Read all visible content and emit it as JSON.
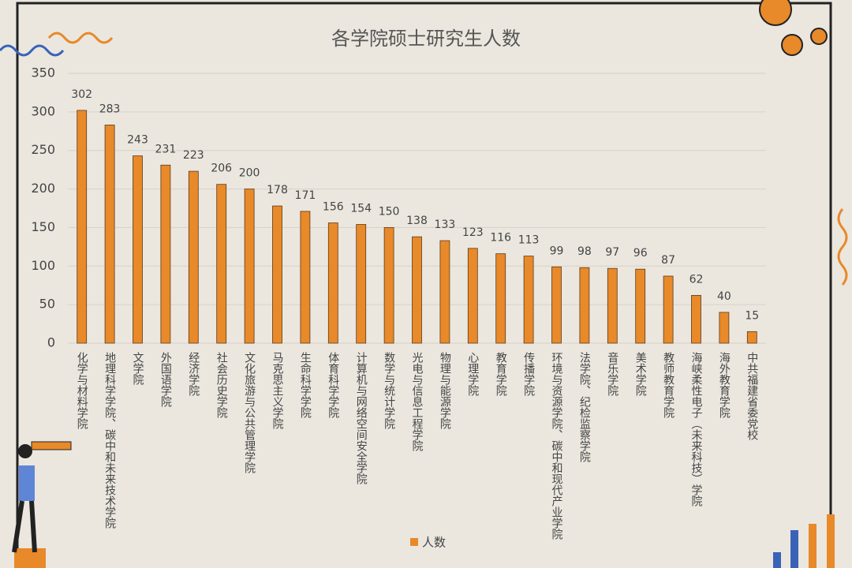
{
  "chart_data": {
    "type": "bar",
    "title": "各学院硕士研究生人数",
    "categories": [
      "化学与材料学院",
      "地理科学学院、碳中和未来技术学院",
      "文学院",
      "外国语学院",
      "经济学院",
      "社会历史学院",
      "文化旅游与公共管理学院",
      "马克思主义学院",
      "生命科学学院",
      "体育科学学院",
      "计算机与网络空间安全学院",
      "数学与统计学院",
      "光电与信息工程学院",
      "物理与能源学院",
      "心理学院",
      "教育学院",
      "传播学院",
      "环境与资源学院、碳中和现代产业学院",
      "法学院、纪检监察学院",
      "音乐学院",
      "美术学院",
      "教师教育学院",
      "海峡柔性电子（未来科技）学院",
      "海外教育学院",
      "中共福建省委党校"
    ],
    "series": [
      {
        "name": "人数",
        "color": "#e8892a",
        "values": [
          302,
          283,
          243,
          231,
          223,
          206,
          200,
          178,
          171,
          156,
          154,
          150,
          138,
          133,
          123,
          116,
          113,
          99,
          98,
          97,
          96,
          87,
          62,
          40,
          15
        ]
      }
    ],
    "ylim": [
      0,
      350
    ],
    "yticks": [
      0,
      50,
      100,
      150,
      200,
      250,
      300,
      350
    ],
    "grid": true,
    "legend": "bottom"
  }
}
